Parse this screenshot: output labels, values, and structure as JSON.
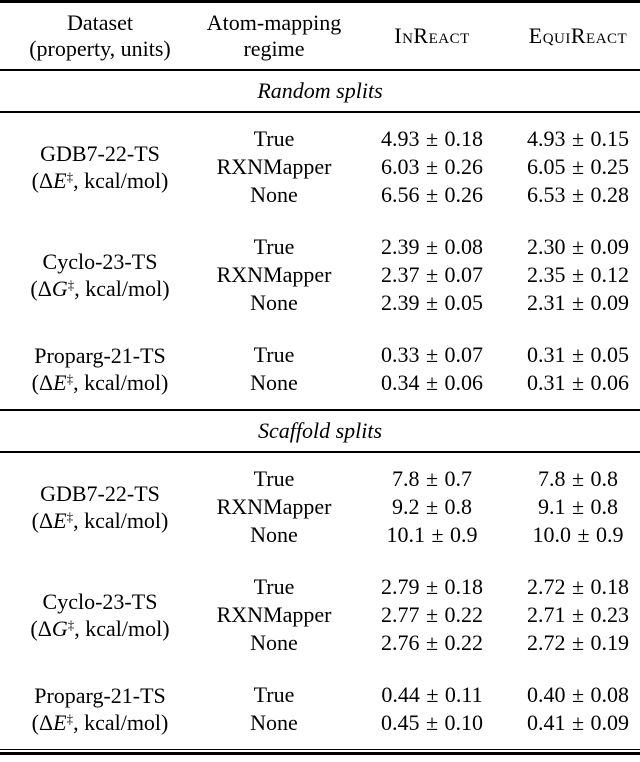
{
  "page": {
    "background_color": "#ffffff",
    "text_color": "#000000",
    "rule_color": "#000000"
  },
  "table": {
    "header": {
      "dataset_line1": "Dataset",
      "dataset_line2": "(property, units)",
      "regime_line1": "Atom-mapping",
      "regime_line2": "regime",
      "model1": "InReact",
      "model2": "EquiReact"
    },
    "sections": [
      {
        "title": "Random splits",
        "blocks": [
          {
            "dataset": "GDB7-22-TS",
            "property_pre": "(Δ",
            "property_var": "E",
            "property_sup": "‡",
            "property_post": ", kcal/mol)",
            "rows": [
              {
                "regime": "True",
                "inreact": "4.93 ± 0.18",
                "equireact": "4.93 ± 0.15"
              },
              {
                "regime": "RXNMapper",
                "inreact": "6.03 ± 0.26",
                "equireact": "6.05 ± 0.25"
              },
              {
                "regime": "None",
                "inreact": "6.56 ± 0.26",
                "equireact": "6.53 ± 0.28"
              }
            ]
          },
          {
            "dataset": "Cyclo-23-TS",
            "property_pre": "(Δ",
            "property_var": "G",
            "property_sup": "‡",
            "property_post": ", kcal/mol)",
            "rows": [
              {
                "regime": "True",
                "inreact": "2.39 ± 0.08",
                "equireact": "2.30 ± 0.09"
              },
              {
                "regime": "RXNMapper",
                "inreact": "2.37 ± 0.07",
                "equireact": "2.35 ± 0.12"
              },
              {
                "regime": "None",
                "inreact": "2.39 ± 0.05",
                "equireact": "2.31 ± 0.09"
              }
            ]
          },
          {
            "dataset": "Proparg-21-TS",
            "property_pre": "(Δ",
            "property_var": "E",
            "property_sup": "‡",
            "property_post": ", kcal/mol)",
            "rows": [
              {
                "regime": "True",
                "inreact": "0.33 ± 0.07",
                "equireact": "0.31 ± 0.05"
              },
              {
                "regime": "None",
                "inreact": "0.34 ± 0.06",
                "equireact": "0.31 ± 0.06"
              }
            ]
          }
        ]
      },
      {
        "title": "Scaffold splits",
        "blocks": [
          {
            "dataset": "GDB7-22-TS",
            "property_pre": "(Δ",
            "property_var": "E",
            "property_sup": "‡",
            "property_post": ", kcal/mol)",
            "rows": [
              {
                "regime": "True",
                "inreact": "7.8 ± 0.7",
                "equireact": "7.8 ± 0.8"
              },
              {
                "regime": "RXNMapper",
                "inreact": "9.2 ± 0.8",
                "equireact": "9.1 ± 0.8"
              },
              {
                "regime": "None",
                "inreact": "10.1 ± 0.9",
                "equireact": "10.0 ± 0.9"
              }
            ]
          },
          {
            "dataset": "Cyclo-23-TS",
            "property_pre": "(Δ",
            "property_var": "G",
            "property_sup": "‡",
            "property_post": ", kcal/mol)",
            "rows": [
              {
                "regime": "True",
                "inreact": "2.79 ± 0.18",
                "equireact": "2.72 ± 0.18"
              },
              {
                "regime": "RXNMapper",
                "inreact": "2.77 ± 0.22",
                "equireact": "2.71 ± 0.23"
              },
              {
                "regime": "None",
                "inreact": "2.76 ± 0.22",
                "equireact": "2.72 ± 0.19"
              }
            ]
          },
          {
            "dataset": "Proparg-21-TS",
            "property_pre": "(Δ",
            "property_var": "E",
            "property_sup": "‡",
            "property_post": ", kcal/mol)",
            "rows": [
              {
                "regime": "True",
                "inreact": "0.44 ± 0.11",
                "equireact": "0.40 ± 0.08"
              },
              {
                "regime": "None",
                "inreact": "0.45 ± 0.10",
                "equireact": "0.41 ± 0.09"
              }
            ]
          }
        ]
      }
    ]
  }
}
